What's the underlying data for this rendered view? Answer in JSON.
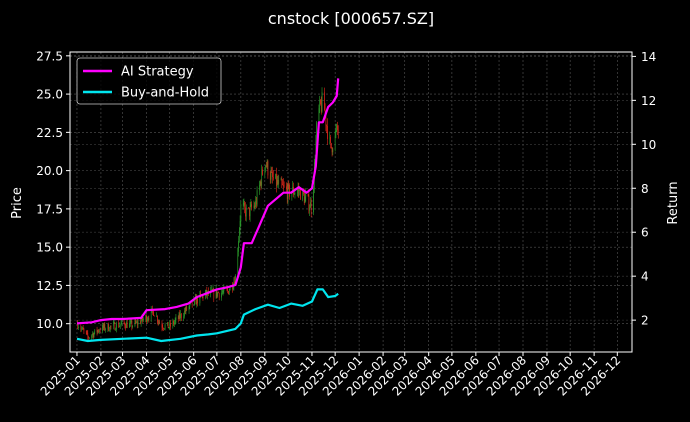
{
  "chart_data": {
    "type": "candlestick+line",
    "title": "cnstock [000657.SZ]",
    "xlabel": "",
    "ylabel_left": "Price",
    "ylabel_right": "Return",
    "xlim": [
      "2024-12-23",
      "2026-12-20"
    ],
    "ylim_left": [
      8.15,
      27.75
    ],
    "ylim_right": [
      0.55,
      14.2
    ],
    "yticks_left": [
      10.0,
      12.5,
      15.0,
      17.5,
      20.0,
      22.5,
      25.0,
      27.5
    ],
    "yticks_left_labels": [
      "10.0",
      "12.5",
      "15.0",
      "17.5",
      "20.0",
      "22.5",
      "25.0",
      "27.5"
    ],
    "yticks_right": [
      2,
      4,
      6,
      8,
      10,
      12,
      14
    ],
    "yticks_right_labels": [
      "2",
      "4",
      "6",
      "8",
      "10",
      "12",
      "14"
    ],
    "xticks": [
      "2025-01",
      "2025-02",
      "2025-03",
      "2025-04",
      "2025-05",
      "2025-06",
      "2025-07",
      "2025-08",
      "2025-09",
      "2025-10",
      "2025-11",
      "2025-12",
      "2026-01",
      "2026-02",
      "2026-03",
      "2026-04",
      "2026-05",
      "2026-06",
      "2026-07",
      "2026-08",
      "2026-09",
      "2026-10",
      "2026-11",
      "2026-12"
    ],
    "grid": true,
    "legend_position": "top-left",
    "colors": {
      "up": "#2ca02c",
      "down": "#e8281c",
      "ai": "#ff00ff",
      "bh": "#00e5ee",
      "grid": "#555555"
    },
    "price_series": {
      "name": "Price",
      "dates": [
        "2025-01-02",
        "2025-01-15",
        "2025-02-01",
        "2025-02-15",
        "2025-03-01",
        "2025-03-15",
        "2025-04-01",
        "2025-04-10",
        "2025-04-20",
        "2025-05-01",
        "2025-05-15",
        "2025-06-01",
        "2025-06-15",
        "2025-07-01",
        "2025-07-15",
        "2025-07-25",
        "2025-08-01",
        "2025-08-10",
        "2025-08-20",
        "2025-09-01",
        "2025-09-10",
        "2025-09-20",
        "2025-10-01",
        "2025-10-15",
        "2025-11-01",
        "2025-11-08",
        "2025-11-15",
        "2025-11-25",
        "2025-12-01",
        "2025-12-05"
      ],
      "values": [
        10.0,
        9.1,
        9.7,
        9.8,
        10.0,
        9.9,
        10.4,
        10.8,
        9.9,
        9.8,
        10.5,
        11.4,
        11.9,
        12.0,
        12.1,
        13.0,
        17.6,
        17.2,
        17.8,
        20.6,
        19.5,
        19.0,
        18.6,
        18.7,
        17.6,
        23.5,
        24.6,
        21.4,
        22.3,
        22.7
      ]
    },
    "series": [
      {
        "name": "AI Strategy",
        "dates": [
          "2025-01-01",
          "2025-01-20",
          "2025-02-01",
          "2025-02-15",
          "2025-03-01",
          "2025-03-25",
          "2025-04-01",
          "2025-04-25",
          "2025-05-10",
          "2025-05-25",
          "2025-06-05",
          "2025-06-20",
          "2025-07-01",
          "2025-07-15",
          "2025-07-25",
          "2025-08-01",
          "2025-08-05",
          "2025-08-15",
          "2025-08-25",
          "2025-09-05",
          "2025-09-15",
          "2025-09-25",
          "2025-10-05",
          "2025-10-15",
          "2025-10-25",
          "2025-11-01",
          "2025-11-06",
          "2025-11-10",
          "2025-11-15",
          "2025-11-22",
          "2025-11-28",
          "2025-12-03",
          "2025-12-05"
        ],
        "values": [
          1.85,
          1.9,
          2.0,
          2.05,
          2.05,
          2.1,
          2.45,
          2.5,
          2.6,
          2.75,
          3.05,
          3.25,
          3.4,
          3.5,
          3.6,
          4.4,
          5.5,
          5.5,
          6.3,
          7.2,
          7.5,
          7.8,
          7.8,
          8.05,
          7.8,
          8.0,
          9.0,
          11.0,
          11.0,
          11.7,
          11.9,
          12.2,
          13.0
        ]
      },
      {
        "name": "Buy-and-Hold",
        "dates": [
          "2025-01-01",
          "2025-01-15",
          "2025-02-01",
          "2025-03-01",
          "2025-04-01",
          "2025-04-20",
          "2025-05-15",
          "2025-06-05",
          "2025-06-20",
          "2025-07-01",
          "2025-07-25",
          "2025-08-01",
          "2025-08-05",
          "2025-08-20",
          "2025-09-05",
          "2025-09-20",
          "2025-10-05",
          "2025-10-20",
          "2025-11-01",
          "2025-11-08",
          "2025-11-15",
          "2025-11-22",
          "2025-12-01",
          "2025-12-05"
        ],
        "values": [
          1.15,
          1.05,
          1.1,
          1.15,
          1.2,
          1.05,
          1.15,
          1.3,
          1.35,
          1.4,
          1.6,
          1.85,
          2.25,
          2.5,
          2.7,
          2.55,
          2.75,
          2.65,
          2.85,
          3.4,
          3.4,
          3.05,
          3.1,
          3.2
        ]
      }
    ]
  }
}
